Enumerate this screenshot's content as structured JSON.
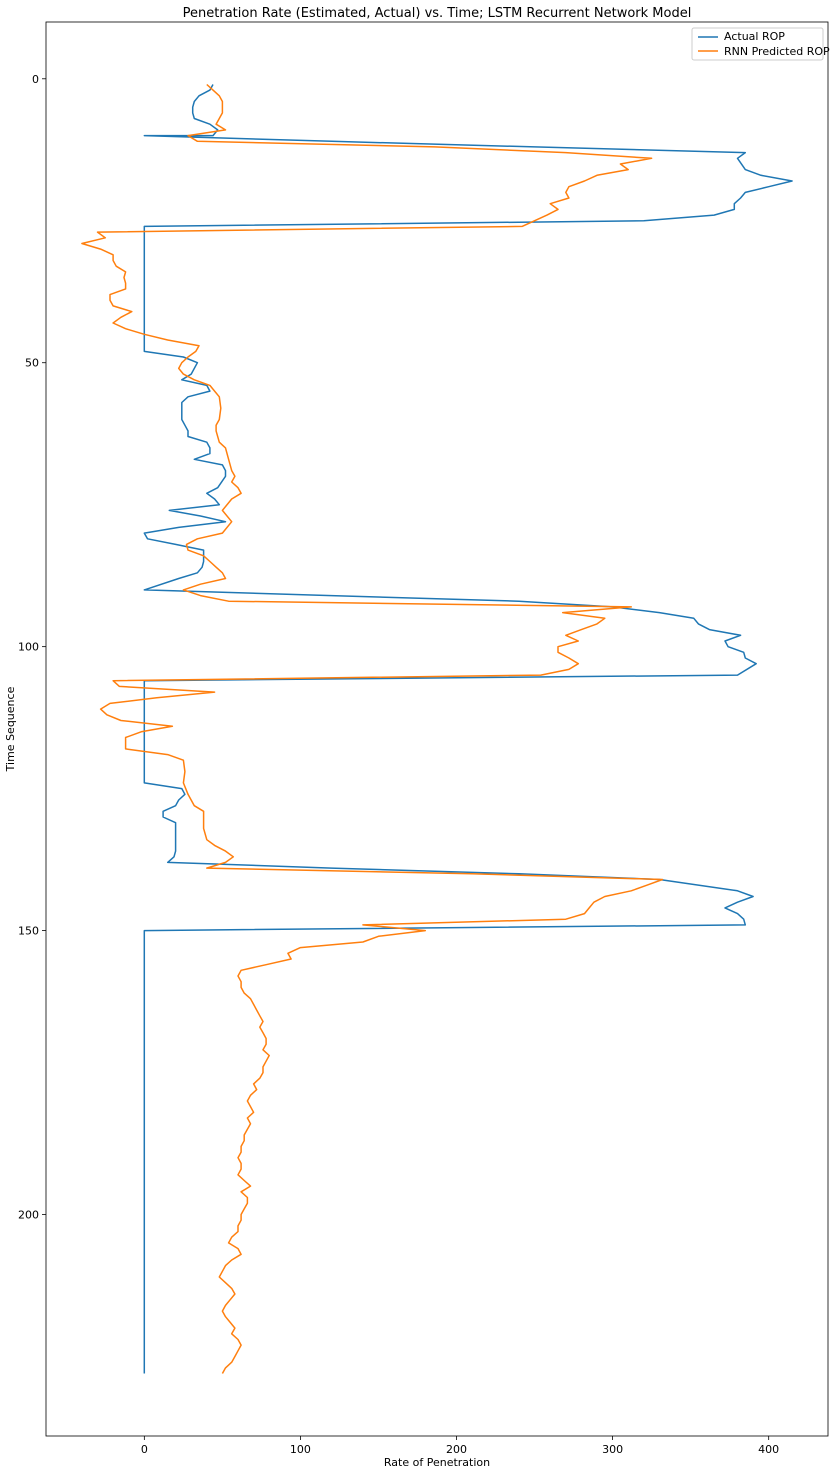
{
  "chart_data": {
    "type": "line",
    "title": "Penetration Rate (Estimated, Actual) vs. Time; LSTM Recurrent Network Model",
    "xlabel": "Rate of Penetration",
    "ylabel": "Time Sequence",
    "xlim": [
      -63,
      438
    ],
    "ylim": [
      239,
      -10
    ],
    "y_inverted": true,
    "x_ticks": [
      0,
      100,
      200,
      300,
      400
    ],
    "y_ticks": [
      0,
      50,
      100,
      150,
      200
    ],
    "grid": false,
    "legend_position": "top-right",
    "series": [
      {
        "name": "Actual ROP",
        "color": "#1f77b4",
        "points": [
          [
            44,
            1
          ],
          [
            42,
            2
          ],
          [
            35,
            3
          ],
          [
            32,
            4
          ],
          [
            31,
            5
          ],
          [
            31,
            6
          ],
          [
            32,
            7
          ],
          [
            42,
            8
          ],
          [
            47,
            9
          ],
          [
            44,
            10
          ],
          [
            0,
            10
          ],
          [
            120,
            11
          ],
          [
            250,
            12
          ],
          [
            385,
            13
          ],
          [
            380,
            14
          ],
          [
            385,
            16
          ],
          [
            395,
            17
          ],
          [
            415,
            18
          ],
          [
            400,
            19
          ],
          [
            385,
            20
          ],
          [
            382,
            21
          ],
          [
            378,
            22
          ],
          [
            378,
            23
          ],
          [
            365,
            24
          ],
          [
            320,
            25
          ],
          [
            0,
            26
          ],
          [
            0,
            30
          ],
          [
            0,
            40
          ],
          [
            0,
            48
          ],
          [
            25,
            49
          ],
          [
            34,
            50
          ],
          [
            30,
            52
          ],
          [
            24,
            53
          ],
          [
            40,
            54
          ],
          [
            42,
            55
          ],
          [
            28,
            56
          ],
          [
            24,
            57
          ],
          [
            24,
            58
          ],
          [
            24,
            60
          ],
          [
            26,
            61
          ],
          [
            28,
            62
          ],
          [
            28,
            63
          ],
          [
            40,
            64
          ],
          [
            42,
            65
          ],
          [
            42,
            66
          ],
          [
            32,
            67
          ],
          [
            50,
            68
          ],
          [
            52,
            69
          ],
          [
            52,
            70
          ],
          [
            47,
            72
          ],
          [
            40,
            73
          ],
          [
            45,
            74
          ],
          [
            48,
            75
          ],
          [
            16,
            76
          ],
          [
            36,
            77
          ],
          [
            52,
            78
          ],
          [
            22,
            79
          ],
          [
            0,
            80
          ],
          [
            2,
            81
          ],
          [
            20,
            82
          ],
          [
            38,
            83
          ],
          [
            38,
            84
          ],
          [
            38,
            85
          ],
          [
            37,
            86
          ],
          [
            34,
            87
          ],
          [
            22,
            88
          ],
          [
            0,
            90
          ],
          [
            120,
            91
          ],
          [
            240,
            92
          ],
          [
            300,
            93
          ],
          [
            330,
            94
          ],
          [
            352,
            95
          ],
          [
            355,
            96
          ],
          [
            362,
            97
          ],
          [
            382,
            98
          ],
          [
            372,
            99
          ],
          [
            374,
            100
          ],
          [
            384,
            101
          ],
          [
            385,
            102
          ],
          [
            392,
            103
          ],
          [
            380,
            105
          ],
          [
            0,
            106
          ],
          [
            0,
            110
          ],
          [
            0,
            120
          ],
          [
            0,
            124
          ],
          [
            24,
            125
          ],
          [
            26,
            126
          ],
          [
            22,
            127
          ],
          [
            20,
            128
          ],
          [
            12,
            129
          ],
          [
            12,
            130
          ],
          [
            20,
            131
          ],
          [
            20,
            132
          ],
          [
            20,
            133
          ],
          [
            20,
            134
          ],
          [
            20,
            135
          ],
          [
            20,
            136
          ],
          [
            19,
            137
          ],
          [
            15,
            138
          ],
          [
            120,
            139
          ],
          [
            240,
            140
          ],
          [
            330,
            141
          ],
          [
            380,
            143
          ],
          [
            390,
            144
          ],
          [
            380,
            145
          ],
          [
            372,
            146
          ],
          [
            380,
            147
          ],
          [
            384,
            148
          ],
          [
            385,
            149
          ],
          [
            0,
            150
          ],
          [
            0,
            160
          ],
          [
            0,
            180
          ],
          [
            0,
            200
          ],
          [
            0,
            210
          ],
          [
            0,
            220
          ],
          [
            0,
            228
          ]
        ]
      },
      {
        "name": "RNN Predicted ROP",
        "color": "#ff7f0e",
        "points": [
          [
            40,
            1
          ],
          [
            44,
            2
          ],
          [
            48,
            3
          ],
          [
            50,
            4
          ],
          [
            50,
            5
          ],
          [
            50,
            6
          ],
          [
            48,
            7
          ],
          [
            46,
            8
          ],
          [
            52,
            9
          ],
          [
            28,
            10
          ],
          [
            34,
            11
          ],
          [
            186,
            12
          ],
          [
            270,
            13
          ],
          [
            325,
            14
          ],
          [
            305,
            15
          ],
          [
            310,
            16
          ],
          [
            290,
            17
          ],
          [
            282,
            18
          ],
          [
            272,
            19
          ],
          [
            270,
            20
          ],
          [
            272,
            21
          ],
          [
            260,
            22
          ],
          [
            265,
            23
          ],
          [
            258,
            24
          ],
          [
            242,
            26
          ],
          [
            -30,
            27
          ],
          [
            -25,
            28
          ],
          [
            -40,
            29
          ],
          [
            -28,
            30
          ],
          [
            -20,
            31
          ],
          [
            -20,
            32
          ],
          [
            -18,
            33
          ],
          [
            -12,
            34
          ],
          [
            -13,
            35
          ],
          [
            -12,
            36
          ],
          [
            -12,
            37
          ],
          [
            -22,
            38
          ],
          [
            -22,
            39
          ],
          [
            -20,
            40
          ],
          [
            -8,
            41
          ],
          [
            -15,
            42
          ],
          [
            -20,
            43
          ],
          [
            -12,
            44
          ],
          [
            0,
            45
          ],
          [
            15,
            46
          ],
          [
            35,
            47
          ],
          [
            33,
            48
          ],
          [
            28,
            49
          ],
          [
            24,
            50
          ],
          [
            22,
            51
          ],
          [
            25,
            52
          ],
          [
            32,
            53
          ],
          [
            42,
            54
          ],
          [
            45,
            55
          ],
          [
            48,
            56
          ],
          [
            49,
            58
          ],
          [
            48,
            60
          ],
          [
            46,
            61
          ],
          [
            46,
            62
          ],
          [
            48,
            64
          ],
          [
            52,
            65
          ],
          [
            54,
            67
          ],
          [
            56,
            69
          ],
          [
            58,
            70
          ],
          [
            56,
            71
          ],
          [
            60,
            72
          ],
          [
            62,
            73
          ],
          [
            56,
            74
          ],
          [
            50,
            76
          ],
          [
            56,
            78
          ],
          [
            50,
            80
          ],
          [
            34,
            81
          ],
          [
            27,
            82
          ],
          [
            28,
            83
          ],
          [
            38,
            84
          ],
          [
            42,
            85
          ],
          [
            46,
            86
          ],
          [
            50,
            87
          ],
          [
            52,
            88
          ],
          [
            36,
            89
          ],
          [
            25,
            90
          ],
          [
            36,
            91
          ],
          [
            54,
            92
          ],
          [
            312,
            93
          ],
          [
            268,
            94
          ],
          [
            295,
            95
          ],
          [
            290,
            96
          ],
          [
            280,
            97
          ],
          [
            270,
            98
          ],
          [
            278,
            99
          ],
          [
            265,
            100
          ],
          [
            265,
            101
          ],
          [
            272,
            102
          ],
          [
            278,
            103
          ],
          [
            272,
            104
          ],
          [
            254,
            105
          ],
          [
            -20,
            106
          ],
          [
            -16,
            107
          ],
          [
            45,
            108
          ],
          [
            8,
            109
          ],
          [
            -22,
            110
          ],
          [
            -28,
            111
          ],
          [
            -24,
            112
          ],
          [
            -15,
            113
          ],
          [
            18,
            114
          ],
          [
            -2,
            115
          ],
          [
            -12,
            116
          ],
          [
            -12,
            118
          ],
          [
            15,
            119
          ],
          [
            25,
            120
          ],
          [
            26,
            122
          ],
          [
            25,
            124
          ],
          [
            28,
            126
          ],
          [
            32,
            128
          ],
          [
            38,
            129
          ],
          [
            38,
            132
          ],
          [
            40,
            134
          ],
          [
            45,
            135
          ],
          [
            52,
            136
          ],
          [
            57,
            137
          ],
          [
            52,
            138
          ],
          [
            40,
            139
          ],
          [
            210,
            140
          ],
          [
            332,
            141
          ],
          [
            322,
            142
          ],
          [
            312,
            143
          ],
          [
            295,
            144
          ],
          [
            288,
            145
          ],
          [
            285,
            146
          ],
          [
            282,
            147
          ],
          [
            270,
            148
          ],
          [
            140,
            149
          ],
          [
            180,
            150
          ],
          [
            150,
            151
          ],
          [
            140,
            152
          ],
          [
            100,
            153
          ],
          [
            92,
            154
          ],
          [
            94,
            155
          ],
          [
            78,
            156
          ],
          [
            62,
            157
          ],
          [
            60,
            158
          ],
          [
            62,
            159
          ],
          [
            62,
            160
          ],
          [
            64,
            161
          ],
          [
            68,
            162
          ],
          [
            70,
            163
          ],
          [
            72,
            164
          ],
          [
            74,
            165
          ],
          [
            76,
            166
          ],
          [
            74,
            167
          ],
          [
            76,
            168
          ],
          [
            78,
            169
          ],
          [
            78,
            170
          ],
          [
            76,
            171
          ],
          [
            80,
            172
          ],
          [
            78,
            173
          ],
          [
            76,
            174
          ],
          [
            76,
            175
          ],
          [
            74,
            176
          ],
          [
            70,
            177
          ],
          [
            72,
            178
          ],
          [
            68,
            179
          ],
          [
            66,
            180
          ],
          [
            68,
            181
          ],
          [
            70,
            182
          ],
          [
            66,
            183
          ],
          [
            68,
            184
          ],
          [
            66,
            185
          ],
          [
            64,
            186
          ],
          [
            64,
            187
          ],
          [
            62,
            188
          ],
          [
            62,
            189
          ],
          [
            60,
            190
          ],
          [
            62,
            191
          ],
          [
            62,
            192
          ],
          [
            60,
            193
          ],
          [
            64,
            194
          ],
          [
            68,
            195
          ],
          [
            62,
            196
          ],
          [
            66,
            197
          ],
          [
            66,
            198
          ],
          [
            64,
            199
          ],
          [
            62,
            200
          ],
          [
            62,
            201
          ],
          [
            60,
            202
          ],
          [
            60,
            203
          ],
          [
            56,
            204
          ],
          [
            54,
            205
          ],
          [
            60,
            206
          ],
          [
            62,
            207
          ],
          [
            56,
            208
          ],
          [
            52,
            209
          ],
          [
            50,
            210
          ],
          [
            48,
            211
          ],
          [
            52,
            212
          ],
          [
            56,
            213
          ],
          [
            58,
            214
          ],
          [
            55,
            215
          ],
          [
            52,
            216
          ],
          [
            50,
            217
          ],
          [
            52,
            218
          ],
          [
            55,
            219
          ],
          [
            58,
            220
          ],
          [
            56,
            221
          ],
          [
            60,
            222
          ],
          [
            62,
            223
          ],
          [
            60,
            224
          ],
          [
            58,
            225
          ],
          [
            56,
            226
          ],
          [
            52,
            227
          ],
          [
            50,
            228
          ]
        ]
      }
    ]
  }
}
